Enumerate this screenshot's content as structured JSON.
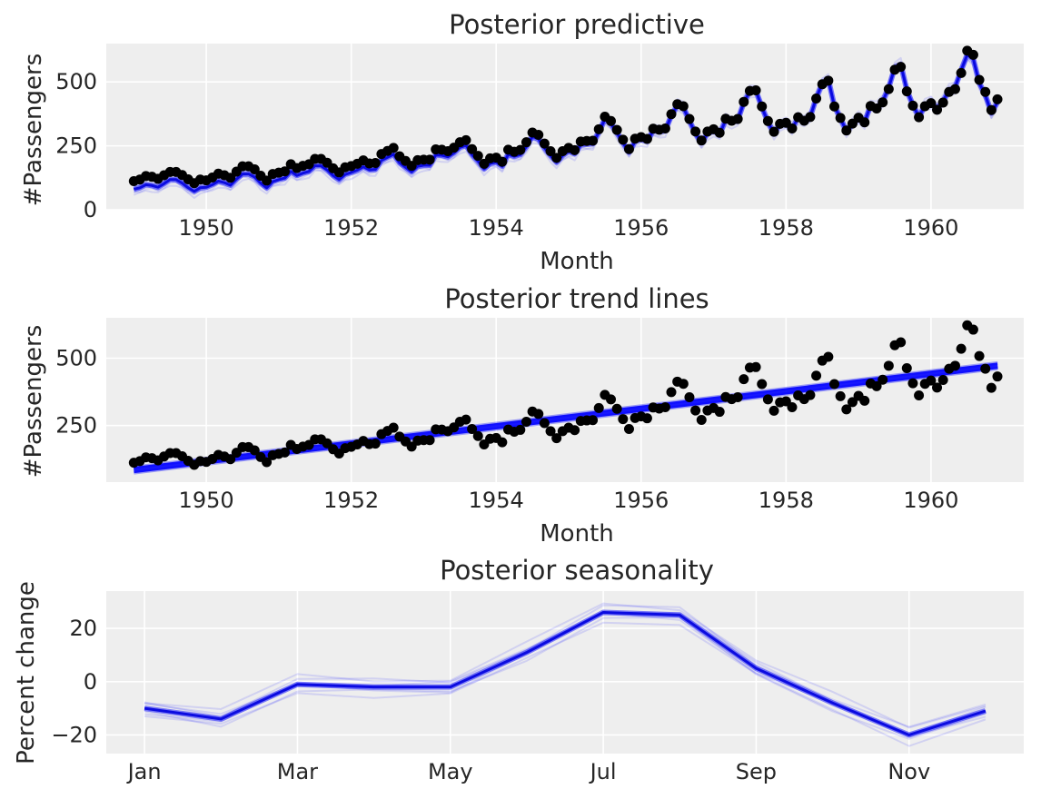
{
  "chart_data": [
    {
      "type": "line",
      "title": "Posterior predictive",
      "xlabel": "Month",
      "ylabel": "#Passengers",
      "xticks": [
        "1950",
        "1952",
        "1954",
        "1956",
        "1958",
        "1960"
      ],
      "yticks": [
        "0",
        "250",
        "500"
      ],
      "xlim": [
        1948.62,
        1961.28
      ],
      "ylim": [
        0,
        650
      ],
      "grid": true,
      "series": [
        {
          "kind": "scatter",
          "color": "#000000",
          "x_start": 1949.0,
          "x_step_months": 1,
          "values": [
            112,
            118,
            132,
            129,
            121,
            135,
            148,
            148,
            136,
            119,
            104,
            118,
            115,
            126,
            141,
            135,
            125,
            149,
            170,
            170,
            158,
            133,
            114,
            140,
            145,
            150,
            178,
            163,
            172,
            178,
            199,
            199,
            184,
            162,
            146,
            166,
            171,
            180,
            193,
            181,
            183,
            218,
            230,
            242,
            209,
            191,
            172,
            194,
            196,
            196,
            236,
            235,
            229,
            243,
            264,
            272,
            237,
            211,
            180,
            201,
            204,
            188,
            235,
            227,
            234,
            264,
            302,
            293,
            259,
            229,
            203,
            229,
            242,
            233,
            267,
            269,
            270,
            315,
            364,
            347,
            312,
            274,
            237,
            278,
            284,
            277,
            317,
            313,
            318,
            374,
            413,
            405,
            355,
            306,
            271,
            306,
            315,
            301,
            356,
            348,
            355,
            422,
            465,
            467,
            404,
            347,
            305,
            336,
            340,
            318,
            362,
            348,
            363,
            435,
            491,
            505,
            404,
            359,
            310,
            337,
            360,
            342,
            406,
            396,
            420,
            472,
            548,
            559,
            463,
            407,
            362,
            405,
            417,
            391,
            419,
            461,
            472,
            535,
            622,
            606,
            508,
            461,
            390,
            432
          ]
        },
        {
          "kind": "posterior-band",
          "color": "#0000ff",
          "x_start": 1949.0,
          "x_step_months": 1,
          "values": [
            80,
            86,
            98,
            95,
            88,
            102,
            118,
            118,
            104,
            86,
            72,
            86,
            88,
            98,
            112,
            106,
            96,
            120,
            140,
            140,
            128,
            104,
            86,
            110,
            118,
            124,
            150,
            134,
            143,
            150,
            172,
            172,
            156,
            134,
            118,
            138,
            146,
            155,
            168,
            156,
            158,
            193,
            205,
            217,
            184,
            166,
            148,
            170,
            174,
            174,
            214,
            213,
            207,
            222,
            244,
            252,
            216,
            190,
            160,
            181,
            186,
            170,
            217,
            209,
            216,
            247,
            286,
            277,
            242,
            212,
            186,
            212,
            228,
            219,
            254,
            256,
            258,
            304,
            354,
            337,
            301,
            262,
            225,
            267,
            275,
            268,
            309,
            305,
            310,
            368,
            408,
            400,
            348,
            298,
            262,
            298,
            309,
            295,
            351,
            343,
            350,
            419,
            463,
            466,
            401,
            343,
            300,
            332,
            338,
            316,
            361,
            347,
            363,
            437,
            495,
            510,
            406,
            358,
            307,
            336,
            360,
            342,
            409,
            399,
            424,
            478,
            556,
            568,
            468,
            410,
            363,
            408,
            422,
            395,
            425,
            468,
            480,
            546,
            606,
            590,
            495,
            448,
            378,
            420
          ]
        }
      ]
    },
    {
      "type": "line",
      "title": "Posterior trend lines",
      "xlabel": "Month",
      "ylabel": "#Passengers",
      "xticks": [
        "1950",
        "1952",
        "1954",
        "1956",
        "1958",
        "1960"
      ],
      "yticks": [
        "250",
        "500"
      ],
      "xlim": [
        1948.62,
        1961.28
      ],
      "ylim": [
        40,
        650
      ],
      "grid": true,
      "series": [
        {
          "kind": "scatter",
          "color": "#000000",
          "x_start": 1949.0,
          "x_step_months": 1,
          "values": [
            112,
            118,
            132,
            129,
            121,
            135,
            148,
            148,
            136,
            119,
            104,
            118,
            115,
            126,
            141,
            135,
            125,
            149,
            170,
            170,
            158,
            133,
            114,
            140,
            145,
            150,
            178,
            163,
            172,
            178,
            199,
            199,
            184,
            162,
            146,
            166,
            171,
            180,
            193,
            181,
            183,
            218,
            230,
            242,
            209,
            191,
            172,
            194,
            196,
            196,
            236,
            235,
            229,
            243,
            264,
            272,
            237,
            211,
            180,
            201,
            204,
            188,
            235,
            227,
            234,
            264,
            302,
            293,
            259,
            229,
            203,
            229,
            242,
            233,
            267,
            269,
            270,
            315,
            364,
            347,
            312,
            274,
            237,
            278,
            284,
            277,
            317,
            313,
            318,
            374,
            413,
            405,
            355,
            306,
            271,
            306,
            315,
            301,
            356,
            348,
            355,
            422,
            465,
            467,
            404,
            347,
            305,
            336,
            340,
            318,
            362,
            348,
            363,
            435,
            491,
            505,
            404,
            359,
            310,
            337,
            360,
            342,
            406,
            396,
            420,
            472,
            548,
            559,
            463,
            407,
            362,
            405,
            417,
            391,
            419,
            461,
            472,
            535,
            622,
            606,
            508,
            461,
            390,
            432
          ]
        },
        {
          "kind": "trend-lines",
          "color": "#0000ff",
          "x": [
            1949.0,
            1960.92
          ],
          "y": [
            85,
            472
          ]
        }
      ]
    },
    {
      "type": "line",
      "title": "Posterior seasonality",
      "xlabel": "",
      "ylabel": "Percent change",
      "xticks": [
        "Jan",
        "Mar",
        "May",
        "Jul",
        "Sep",
        "Nov"
      ],
      "yticks": [
        "20",
        "0",
        "−20"
      ],
      "xlim": [
        0.5,
        12.5
      ],
      "ylim": [
        -27,
        34
      ],
      "grid": true,
      "series": [
        {
          "kind": "posterior-band",
          "color": "#0000ff",
          "x": [
            1,
            2,
            3,
            4,
            5,
            6,
            7,
            8,
            9,
            10,
            11,
            12
          ],
          "values": [
            -10,
            -14,
            -1,
            -2,
            -2,
            11,
            26,
            25,
            5,
            -8,
            -20,
            -11
          ]
        }
      ]
    }
  ]
}
